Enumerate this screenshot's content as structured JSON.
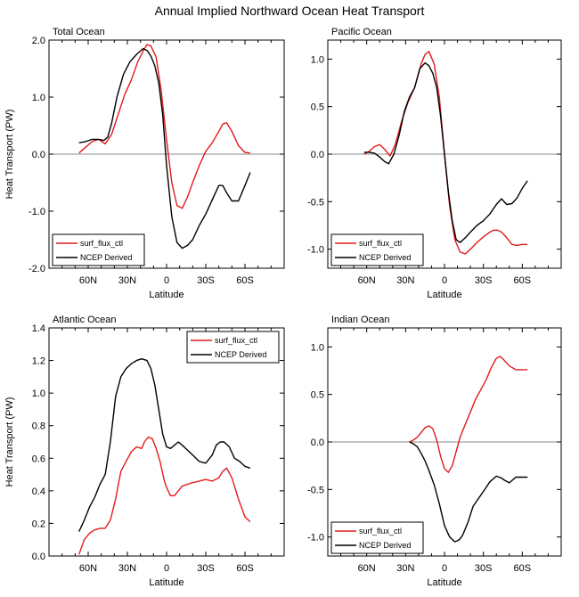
{
  "figure_title": "Annual Implied Northward Ocean Heat Transport",
  "chart_data": [
    {
      "type": "line",
      "title": "Total Ocean",
      "xlabel": "Latitude",
      "ylabel": "Heat Transport (PW)",
      "xlim": [
        90,
        -90
      ],
      "ylim": [
        -2.0,
        2.0
      ],
      "xticks": [
        60,
        30,
        0,
        -30,
        -60
      ],
      "xtick_labels": [
        "60N",
        "30N",
        "0",
        "30S",
        "60S"
      ],
      "yticks": [
        -2.0,
        -1.0,
        0.0,
        1.0,
        2.0
      ],
      "ytick_labels": [
        "-2.0",
        "-1.0",
        "0.0",
        "1.0",
        "2.0"
      ],
      "zero_line": true,
      "legend_position": "bottom-left",
      "series": [
        {
          "name": "surf_flux_ctl",
          "color": "#e31a1c",
          "x": [
            67,
            62,
            57,
            52,
            47,
            42,
            37,
            32,
            27,
            22,
            17,
            15,
            12,
            8,
            4,
            0,
            -4,
            -8,
            -12,
            -16,
            -20,
            -25,
            -30,
            -35,
            -40,
            -43,
            -46,
            -50,
            -55,
            -60,
            -64
          ],
          "y": [
            0.02,
            0.12,
            0.22,
            0.26,
            0.18,
            0.35,
            0.7,
            1.05,
            1.3,
            1.62,
            1.85,
            1.92,
            1.9,
            1.7,
            1.1,
            0.25,
            -0.5,
            -0.9,
            -0.95,
            -0.75,
            -0.5,
            -0.2,
            0.05,
            0.2,
            0.4,
            0.53,
            0.55,
            0.4,
            0.15,
            0.03,
            0.02
          ]
        },
        {
          "name": "NCEP Derived",
          "color": "#000000",
          "x": [
            67,
            62,
            57,
            52,
            48,
            45,
            42,
            38,
            33,
            28,
            23,
            18,
            15,
            12,
            9,
            6,
            3,
            0,
            -4,
            -8,
            -12,
            -16,
            -20,
            -25,
            -30,
            -35,
            -40,
            -43,
            -46,
            -50,
            -55,
            -60,
            -64
          ],
          "y": [
            0.2,
            0.22,
            0.26,
            0.26,
            0.24,
            0.3,
            0.55,
            1.0,
            1.4,
            1.62,
            1.75,
            1.85,
            1.82,
            1.72,
            1.55,
            1.25,
            0.7,
            -0.2,
            -1.1,
            -1.55,
            -1.65,
            -1.6,
            -1.5,
            -1.25,
            -1.05,
            -0.8,
            -0.55,
            -0.55,
            -0.68,
            -0.82,
            -0.82,
            -0.55,
            -0.32
          ]
        }
      ]
    },
    {
      "type": "line",
      "title": "Pacific Ocean",
      "xlabel": "Latitude",
      "ylabel": "",
      "xlim": [
        90,
        -90
      ],
      "ylim": [
        -1.2,
        1.2
      ],
      "xticks": [
        60,
        30,
        0,
        -30,
        -60
      ],
      "xtick_labels": [
        "60N",
        "30N",
        "0",
        "30S",
        "60S"
      ],
      "yticks": [
        -1.0,
        -0.5,
        0.0,
        0.5,
        1.0
      ],
      "ytick_labels": [
        "-1.0",
        "-0.5",
        "0.0",
        "0.5",
        "1.0"
      ],
      "zero_line": true,
      "legend_position": "bottom-left",
      "series": [
        {
          "name": "surf_flux_ctl",
          "color": "#e31a1c",
          "x": [
            62,
            58,
            54,
            50,
            46,
            42,
            38,
            33,
            28,
            23,
            18,
            15,
            12,
            8,
            4,
            0,
            -4,
            -8,
            -12,
            -16,
            -20,
            -25,
            -30,
            -35,
            -38,
            -41,
            -44,
            -48,
            -52,
            -56,
            -60,
            -64
          ],
          "y": [
            0.0,
            0.03,
            0.08,
            0.1,
            0.05,
            -0.02,
            0.1,
            0.35,
            0.55,
            0.7,
            0.95,
            1.05,
            1.08,
            0.95,
            0.6,
            0.0,
            -0.55,
            -0.9,
            -1.03,
            -1.05,
            -1.0,
            -0.93,
            -0.87,
            -0.82,
            -0.8,
            -0.8,
            -0.82,
            -0.88,
            -0.95,
            -0.96,
            -0.95,
            -0.95
          ]
        },
        {
          "name": "NCEP Derived",
          "color": "#000000",
          "x": [
            62,
            58,
            54,
            50,
            46,
            43,
            39,
            35,
            31,
            27,
            23,
            19,
            15,
            12,
            9,
            6,
            3,
            0,
            -3,
            -6,
            -9,
            -12,
            -16,
            -20,
            -25,
            -30,
            -35,
            -40,
            -44,
            -48,
            -52,
            -56,
            -60,
            -64
          ],
          "y": [
            0.02,
            0.02,
            0.01,
            -0.03,
            -0.08,
            -0.1,
            0.0,
            0.2,
            0.45,
            0.6,
            0.7,
            0.9,
            0.96,
            0.93,
            0.85,
            0.7,
            0.4,
            0.0,
            -0.4,
            -0.7,
            -0.9,
            -0.93,
            -0.88,
            -0.82,
            -0.75,
            -0.7,
            -0.63,
            -0.53,
            -0.47,
            -0.53,
            -0.52,
            -0.46,
            -0.36,
            -0.28
          ]
        }
      ]
    },
    {
      "type": "line",
      "title": "Atlantic Ocean",
      "xlabel": "Latitude",
      "ylabel": "Heat Transport (PW)",
      "xlim": [
        90,
        -90
      ],
      "ylim": [
        0.0,
        1.4
      ],
      "xticks": [
        60,
        30,
        0,
        -30,
        -60
      ],
      "xtick_labels": [
        "60N",
        "30N",
        "0",
        "30S",
        "60S"
      ],
      "yticks": [
        0.0,
        0.2,
        0.4,
        0.6,
        0.8,
        1.0,
        1.2,
        1.4
      ],
      "ytick_labels": [
        "0.0",
        "0.2",
        "0.4",
        "0.6",
        "0.8",
        "1.0",
        "1.2",
        "1.4"
      ],
      "zero_line": false,
      "legend_position": "top-right",
      "series": [
        {
          "name": "surf_flux_ctl",
          "color": "#e31a1c",
          "x": [
            67,
            63,
            59,
            55,
            51,
            47,
            43,
            39,
            35,
            31,
            27,
            23,
            19,
            17,
            14,
            11,
            8,
            5,
            2,
            0,
            -3,
            -6,
            -9,
            -12,
            -16,
            -20,
            -25,
            -30,
            -35,
            -40,
            -43,
            -46,
            -50,
            -55,
            -60,
            -64
          ],
          "y": [
            0.01,
            0.1,
            0.14,
            0.16,
            0.17,
            0.17,
            0.22,
            0.35,
            0.52,
            0.58,
            0.64,
            0.67,
            0.66,
            0.7,
            0.73,
            0.72,
            0.66,
            0.58,
            0.47,
            0.42,
            0.37,
            0.37,
            0.4,
            0.43,
            0.44,
            0.45,
            0.46,
            0.47,
            0.46,
            0.48,
            0.52,
            0.54,
            0.48,
            0.35,
            0.24,
            0.21
          ]
        },
        {
          "name": "NCEP Derived",
          "color": "#000000",
          "x": [
            67,
            63,
            59,
            55,
            51,
            47,
            43,
            39,
            35,
            31,
            27,
            23,
            19,
            15,
            12,
            9,
            6,
            3,
            0,
            -3,
            -6,
            -9,
            -12,
            -16,
            -20,
            -25,
            -30,
            -35,
            -38,
            -41,
            -44,
            -48,
            -52,
            -56,
            -60,
            -64
          ],
          "y": [
            0.15,
            0.22,
            0.3,
            0.36,
            0.44,
            0.5,
            0.7,
            0.98,
            1.1,
            1.15,
            1.18,
            1.2,
            1.21,
            1.2,
            1.15,
            1.05,
            0.9,
            0.75,
            0.67,
            0.66,
            0.68,
            0.7,
            0.68,
            0.65,
            0.62,
            0.58,
            0.57,
            0.62,
            0.68,
            0.7,
            0.7,
            0.67,
            0.6,
            0.58,
            0.55,
            0.54
          ]
        }
      ]
    },
    {
      "type": "line",
      "title": "Indian Ocean",
      "xlabel": "Latitude",
      "ylabel": "",
      "xlim": [
        90,
        -90
      ],
      "ylim": [
        -1.2,
        1.2
      ],
      "xticks": [
        60,
        30,
        0,
        -30,
        -60
      ],
      "xtick_labels": [
        "60N",
        "30N",
        "0",
        "30S",
        "60S"
      ],
      "yticks": [
        -1.0,
        -0.5,
        0.0,
        0.5,
        1.0
      ],
      "ytick_labels": [
        "-1.0",
        "-0.5",
        "0.0",
        "0.5",
        "1.0"
      ],
      "zero_line": true,
      "legend_position": "bottom-left",
      "series": [
        {
          "name": "surf_flux_ctl",
          "color": "#e31a1c",
          "x": [
            27,
            24,
            21,
            18,
            15,
            12,
            9,
            6,
            3,
            0,
            -3,
            -6,
            -9,
            -12,
            -15,
            -18,
            -21,
            -24,
            -28,
            -32,
            -36,
            -40,
            -43,
            -46,
            -50,
            -55,
            -60,
            -64
          ],
          "y": [
            0.0,
            0.02,
            0.05,
            0.1,
            0.15,
            0.17,
            0.14,
            0.02,
            -0.15,
            -0.28,
            -0.32,
            -0.25,
            -0.1,
            0.05,
            0.15,
            0.25,
            0.35,
            0.45,
            0.55,
            0.65,
            0.78,
            0.88,
            0.9,
            0.86,
            0.8,
            0.76,
            0.76,
            0.76
          ]
        },
        {
          "name": "NCEP Derived",
          "color": "#000000",
          "x": [
            27,
            24,
            21,
            18,
            15,
            12,
            8,
            4,
            0,
            -4,
            -8,
            -10,
            -12,
            -14,
            -18,
            -22,
            -26,
            -30,
            -35,
            -40,
            -44,
            -46,
            -50,
            -55,
            -60,
            -64
          ],
          "y": [
            0.0,
            -0.02,
            -0.05,
            -0.12,
            -0.2,
            -0.3,
            -0.45,
            -0.65,
            -0.88,
            -1.0,
            -1.05,
            -1.04,
            -1.02,
            -0.98,
            -0.85,
            -0.68,
            -0.6,
            -0.52,
            -0.42,
            -0.36,
            -0.38,
            -0.4,
            -0.43,
            -0.37,
            -0.37,
            -0.37
          ]
        }
      ]
    }
  ]
}
